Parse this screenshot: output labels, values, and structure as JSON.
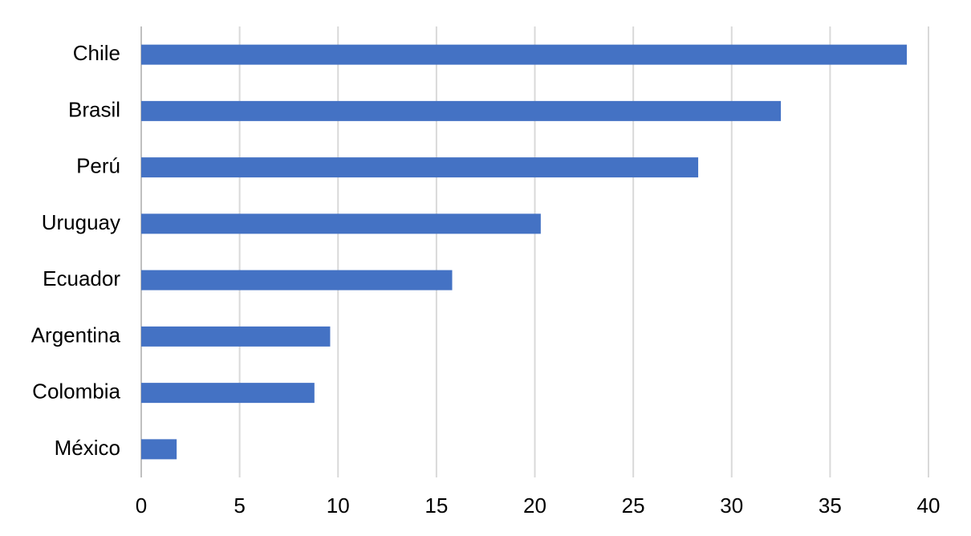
{
  "chart_data": {
    "type": "hbar",
    "categories": [
      "Chile",
      "Brasil",
      "Perú",
      "Uruguay",
      "Ecuador",
      "Argentina",
      "Colombia",
      "México"
    ],
    "values": [
      38.9,
      32.5,
      28.3,
      20.3,
      15.8,
      9.6,
      8.8,
      1.8
    ],
    "color": "#4472c4",
    "xlim": [
      0,
      40
    ],
    "xticks": [
      0,
      5,
      10,
      15,
      20,
      25,
      30,
      35,
      40
    ],
    "grid": true
  }
}
